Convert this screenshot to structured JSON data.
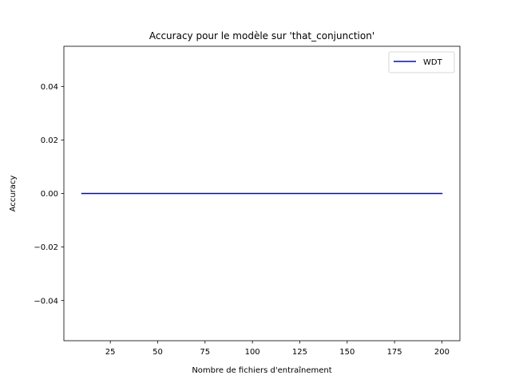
{
  "chart_data": {
    "type": "line",
    "title": "Accuracy pour le modèle sur 'that_conjunction'",
    "xlabel": "Nombre de fichiers d'entraînement",
    "ylabel": "Accuracy",
    "xlim": [
      0.5,
      209.5
    ],
    "ylim": [
      -0.055,
      0.055
    ],
    "xticks": [
      25,
      50,
      75,
      100,
      125,
      150,
      175,
      200
    ],
    "xtick_labels": [
      "25",
      "50",
      "75",
      "100",
      "125",
      "150",
      "175",
      "200"
    ],
    "yticks": [
      -0.04,
      -0.02,
      0.0,
      0.02,
      0.04
    ],
    "ytick_labels": [
      "−0.04",
      "−0.02",
      "0.00",
      "0.02",
      "0.04"
    ],
    "grid": false,
    "legend_position": "top-right",
    "series": [
      {
        "name": "WDT",
        "color": "#0000ff",
        "x": [
          10,
          200
        ],
        "y": [
          0.0,
          0.0
        ]
      }
    ]
  }
}
